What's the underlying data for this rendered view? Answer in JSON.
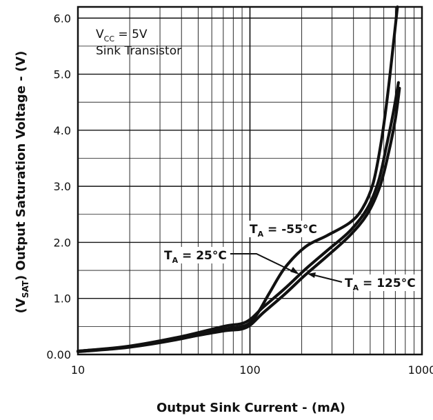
{
  "chart_data": {
    "type": "line",
    "xscale": "log",
    "xlim": [
      10,
      1000
    ],
    "ylim": [
      0,
      6.2
    ],
    "grid": true,
    "xlabel": "Output Sink Current - (mA)",
    "ylabel_symbol": "(V",
    "ylabel_sub": "SAT",
    "ylabel_rest": ")  Output Saturation Voltage - (V)",
    "x_ticks": [
      {
        "value": 10,
        "label": "10"
      },
      {
        "value": 100,
        "label": "100"
      },
      {
        "value": 1000,
        "label": "1000"
      }
    ],
    "y_ticks": [
      {
        "value": 0,
        "label": "0.00"
      },
      {
        "value": 1,
        "label": "1.0"
      },
      {
        "value": 2,
        "label": "2.0"
      },
      {
        "value": 3,
        "label": "3.0"
      },
      {
        "value": 4,
        "label": "4.0"
      },
      {
        "value": 5,
        "label": "5.0"
      },
      {
        "value": 6,
        "label": "6.0"
      }
    ],
    "conditions": {
      "vcc_main": "V",
      "vcc_sub": "CC",
      "vcc_value": " = 5V",
      "line2": "Sink Transistor"
    },
    "series": [
      {
        "name_main": "T",
        "name_sub": "A",
        "name_rest": " = -55°C",
        "x": [
          10,
          20,
          40,
          70,
          95,
          110,
          130,
          160,
          210,
          280,
          380,
          450,
          520,
          580,
          630,
          680,
          720
        ],
        "y": [
          0.05,
          0.13,
          0.28,
          0.45,
          0.52,
          0.72,
          1.1,
          1.55,
          1.92,
          2.12,
          2.35,
          2.6,
          3.05,
          3.8,
          4.6,
          5.5,
          6.2
        ]
      },
      {
        "name_main": "T",
        "name_sub": "A",
        "name_rest": " = 25°C",
        "x": [
          10,
          20,
          40,
          70,
          95,
          120,
          160,
          210,
          280,
          380,
          480,
          560,
          620,
          680,
          730
        ],
        "y": [
          0.06,
          0.15,
          0.32,
          0.5,
          0.58,
          0.85,
          1.18,
          1.52,
          1.85,
          2.2,
          2.6,
          3.1,
          3.7,
          4.3,
          4.85
        ]
      },
      {
        "name_main": "T",
        "name_sub": "A",
        "name_rest": " = 125°C",
        "x": [
          10,
          20,
          40,
          70,
          95,
          120,
          160,
          210,
          280,
          380,
          480,
          570,
          640,
          700,
          740
        ],
        "y": [
          0.06,
          0.14,
          0.29,
          0.42,
          0.48,
          0.75,
          1.08,
          1.42,
          1.75,
          2.12,
          2.5,
          3.0,
          3.6,
          4.2,
          4.75
        ]
      }
    ]
  }
}
